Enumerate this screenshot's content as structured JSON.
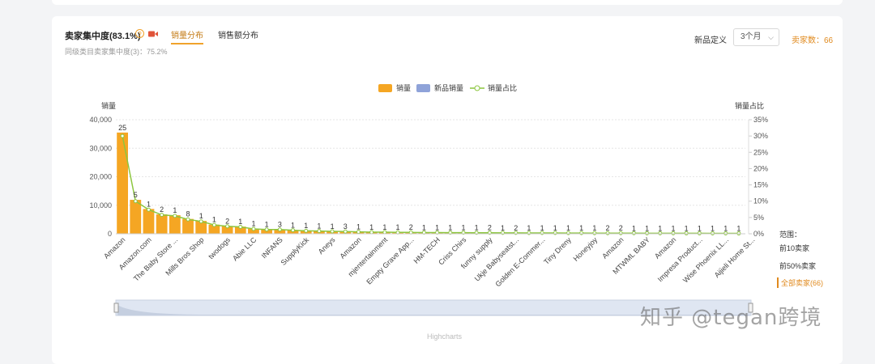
{
  "header": {
    "title": "卖家集中度(83.1%)",
    "help_glyph": "?",
    "tabs": [
      {
        "label": "销量分布",
        "active": true
      },
      {
        "label": "销售额分布",
        "active": false
      }
    ],
    "subtitle": "同级类目卖家集中度(3)：75.2%",
    "new_product_label": "新品定义",
    "select_value": "3个月",
    "seller_count": "卖家数：66"
  },
  "legend": {
    "sales": "销量",
    "new_sales": "新品销量",
    "ratio": "销量占比"
  },
  "colors": {
    "bar": "#f5a623",
    "new_bar": "#8fa3d9",
    "line": "#8cc63f",
    "accent": "#e08a1e"
  },
  "range": {
    "title": "范围：",
    "options": [
      {
        "label": "前10卖家",
        "selected": false
      },
      {
        "label": "前50%卖家",
        "selected": false
      },
      {
        "label": "全部卖家(66)",
        "selected": true
      }
    ]
  },
  "credits": "Highcharts",
  "watermark": "知乎 @tegan跨境",
  "chart_data": {
    "type": "bar",
    "ylabel": "销量",
    "y2label": "销量占比",
    "ylim": [
      0,
      40000
    ],
    "y2lim": [
      0,
      35
    ],
    "yticks": [
      "0",
      "10,000",
      "20,000",
      "30,000",
      "40,000"
    ],
    "y2ticks": [
      "0%",
      "5%",
      "10%",
      "15%",
      "20%",
      "25%",
      "30%",
      "35%"
    ],
    "grid": true,
    "legend_position": "top-center",
    "x_tick_labels": [
      "Amazon",
      "Amazon.com",
      "The Baby Store ...",
      "Mills Bros Shop",
      "twodogs",
      "Abie LLC",
      "INFANS",
      "SupplyKick",
      "Aneys",
      "Amazon",
      "mjentertainment",
      "Empty Grave App...",
      "HM-TECH",
      "Criss Chirs",
      "funny supply",
      "Ukje Babyseatst...",
      "Golden E-Commer...",
      "Tiny Dreny",
      "Honeyjoy",
      "Amazon",
      "MTWML BABY",
      "Amazon",
      "Impresa Product...",
      "Wise Phoenix LL...",
      "Aijieli Home St..."
    ],
    "values": [
      35500,
      11900,
      8700,
      6800,
      6500,
      5200,
      4500,
      3200,
      2700,
      2500,
      1800,
      1500,
      1500,
      1300,
      1100,
      1000,
      900,
      800,
      700,
      600,
      600,
      500,
      500,
      450,
      450,
      400,
      400,
      380,
      360,
      340,
      320,
      300,
      300,
      280,
      260,
      250,
      240,
      230,
      220,
      210,
      200,
      190,
      180,
      170,
      160,
      150,
      140,
      130
    ],
    "ratio": [
      30.0,
      10.0,
      7.4,
      5.8,
      5.5,
      4.4,
      3.8,
      2.7,
      2.3,
      2.1,
      1.5,
      1.3,
      1.3,
      1.1,
      0.9,
      0.85,
      0.75,
      0.68,
      0.6,
      0.5,
      0.5,
      0.42,
      0.42,
      0.38,
      0.38,
      0.34,
      0.34,
      0.32,
      0.3,
      0.29,
      0.27,
      0.25,
      0.25,
      0.24,
      0.22,
      0.21,
      0.2,
      0.2,
      0.19,
      0.18,
      0.17,
      0.16,
      0.15,
      0.14,
      0.14,
      0.13,
      0.12,
      0.11
    ],
    "data_labels": [
      "25",
      "5",
      "1",
      "2",
      "1",
      "8",
      "1",
      "1",
      "2",
      "1",
      "1",
      "1",
      "3",
      "1",
      "1",
      "1",
      "1",
      "3",
      "1",
      "1",
      "1",
      "1",
      "2",
      "1",
      "1",
      "1",
      "1",
      "1",
      "2",
      "1",
      "2",
      "1",
      "1",
      "1",
      "1",
      "1",
      "1",
      "2",
      "2",
      "1",
      "1",
      "1",
      "1",
      "1",
      "1",
      "1",
      "1",
      "1"
    ]
  }
}
